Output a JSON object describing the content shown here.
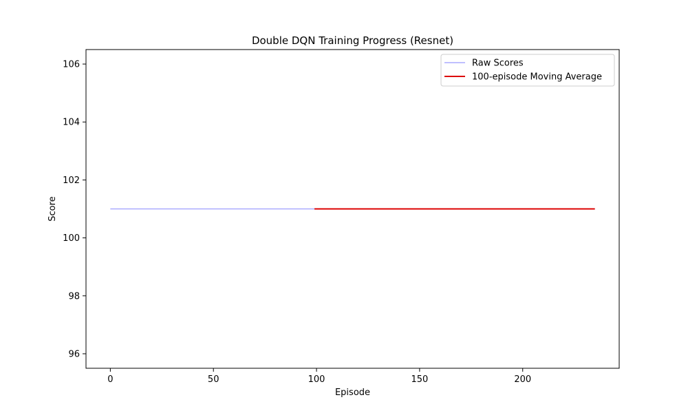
{
  "chart_data": {
    "type": "line",
    "title": "Double DQN Training Progress (Resnet)",
    "xlabel": "Episode",
    "ylabel": "Score",
    "xlim": [
      -11.8,
      246.8
    ],
    "ylim": [
      95.5,
      106.5
    ],
    "xticks": [
      0,
      50,
      100,
      150,
      200
    ],
    "yticks": [
      96,
      98,
      100,
      102,
      104,
      106
    ],
    "grid": false,
    "legend": "upper right",
    "series": [
      {
        "name": "Raw Scores",
        "color": "#aaaaff",
        "x": [
          0,
          235
        ],
        "y": [
          101,
          101
        ]
      },
      {
        "name": "100-episode Moving Average",
        "color": "#dd0000",
        "x": [
          99,
          235
        ],
        "y": [
          101,
          101
        ]
      }
    ]
  }
}
